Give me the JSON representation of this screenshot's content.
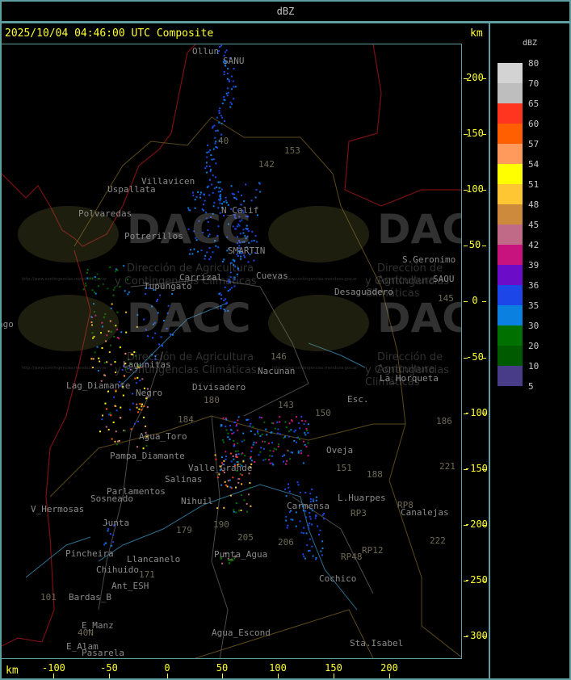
{
  "header": {
    "title": "dBZ"
  },
  "map": {
    "caption": "2025/10/04 04:46:00 UTC Composite",
    "unit_top": "km",
    "unit_bottom": "km",
    "x_ticks": [
      "-100",
      "-50",
      "0",
      "50",
      "100",
      "150",
      "200"
    ],
    "y_ticks": [
      "200",
      "150",
      "100",
      "50",
      "0",
      "-50",
      "-100",
      "-150",
      "-200",
      "-250",
      "-300"
    ],
    "watermark": {
      "logo": "DACC",
      "line1": "Dirección de Agricultura",
      "line2": "y Contingencias Climáticas",
      "url": "http://www.contingencias.mendoza.gov.ar"
    },
    "places": [
      "Ollun",
      "SANU",
      "Villavicen",
      "Uspallata",
      "Polvaredas",
      "N_Calif",
      "Potrerillos",
      "SMARTIN",
      "Carrizal",
      "Cuevas",
      "Desaguadero",
      "S.Geronimo",
      "SAOU",
      "Nacunan",
      "La_Horqueta",
      "Lag_Diamante",
      "Divisadero",
      "Esc.",
      "Agua_Toro",
      "Pampa_Diamante",
      "Valle_Grande",
      "Oveja",
      "Sosneado",
      "Parlamentos",
      "Nihuil",
      "Carmensa",
      "L.Huarpes",
      "Canalejas",
      "V_Hermosas",
      "Junta",
      "Pincheira",
      "Llancanelo",
      "Punta_Agua",
      "Chihuido",
      "Ant_ESH",
      "Bardas_B",
      "Cochico",
      "E_Manz",
      "E_Alam",
      "Pasarela",
      "Agua_Escond",
      "Sta.Isabel",
      "Negro",
      "Salinas",
      "Lagunitas",
      "Tupungato",
      "ago"
    ],
    "routes": [
      "40",
      "142",
      "153",
      "146",
      "143",
      "150",
      "180",
      "184",
      "179",
      "190",
      "205",
      "206",
      "151",
      "188",
      "RP3",
      "RP12",
      "RP48",
      "RP8",
      "145",
      "186",
      "221",
      "222",
      "101",
      "171",
      "40N"
    ]
  },
  "legend": {
    "title": "dBZ",
    "items": [
      {
        "label": "80",
        "color": "#d3d3d3"
      },
      {
        "label": "70",
        "color": "#bebebe"
      },
      {
        "label": "65",
        "color": "#ff3520"
      },
      {
        "label": "60",
        "color": "#ff5f00"
      },
      {
        "label": "57",
        "color": "#ff9a5c"
      },
      {
        "label": "54",
        "color": "#ffff00"
      },
      {
        "label": "51",
        "color": "#ffc634"
      },
      {
        "label": "48",
        "color": "#cd8a3c"
      },
      {
        "label": "45",
        "color": "#c06a88"
      },
      {
        "label": "42",
        "color": "#c8127e"
      },
      {
        "label": "39",
        "color": "#6a0cc8"
      },
      {
        "label": "36",
        "color": "#1c46e8"
      },
      {
        "label": "35",
        "color": "#0a80e0"
      },
      {
        "label": "30",
        "color": "#007000"
      },
      {
        "label": "20",
        "color": "#005a00"
      },
      {
        "label": "10",
        "color": "#483c88"
      },
      {
        "label": "5",
        "color": ""
      }
    ]
  }
}
